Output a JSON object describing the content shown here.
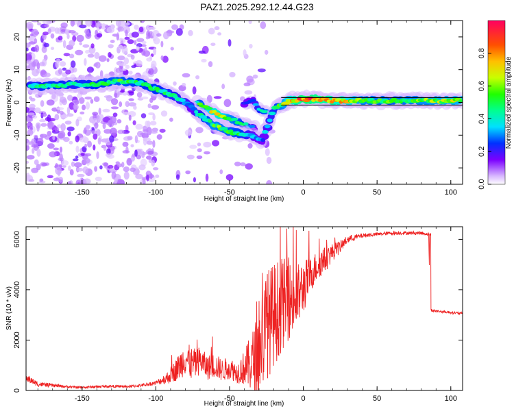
{
  "title": "PAZ1.2025.292.12.44.G23",
  "colors": {
    "snr_line": "#ee2222",
    "blob_low": "#c9a8ff",
    "blob_mid": "#7a1cf0",
    "axis": "#000000"
  },
  "chart_data": [
    {
      "type": "heatmap",
      "xlabel": "Height of straight line (km)",
      "ylabel": "Frequency (Hz)",
      "xlim": [
        -188,
        108
      ],
      "ylim": [
        -25,
        25
      ],
      "x_ticks": [
        -150,
        -100,
        -50,
        0,
        50,
        100
      ],
      "y_ticks": [
        -20,
        -10,
        0,
        10,
        20
      ],
      "colorbar": {
        "label": "Normalized spectral amplitude",
        "range": [
          0,
          1
        ],
        "ticks": [
          0.0,
          0.2,
          0.4,
          0.6,
          0.8
        ],
        "tick_labels": [
          "0.0",
          "0.2",
          "0.4",
          "0.6",
          "0.8"
        ]
      },
      "main_ridge": {
        "x": [
          -185,
          -170,
          -155,
          -140,
          -125,
          -110,
          -100,
          -90,
          -80,
          -75,
          -70,
          -60,
          -50,
          -42,
          -35,
          -28,
          -20,
          -10,
          0,
          10,
          20,
          40,
          60,
          80,
          100,
          108
        ],
        "y": [
          5,
          5,
          5.5,
          5.5,
          6.5,
          6,
          4,
          2.5,
          0,
          -2,
          -4,
          -7,
          -9,
          -9.5,
          -10,
          -12,
          -2,
          0.5,
          1,
          1,
          0.5,
          0.5,
          0.5,
          0.5,
          0.5,
          0.5
        ],
        "amplitude": [
          0.45,
          0.5,
          0.45,
          0.5,
          0.55,
          0.5,
          0.5,
          0.45,
          0.4,
          0.3,
          0.45,
          0.6,
          0.55,
          0.5,
          0.35,
          0.3,
          0.45,
          0.7,
          0.95,
          0.9,
          0.85,
          0.6,
          0.55,
          0.6,
          0.65,
          0.65
        ]
      },
      "secondary_ridge": {
        "x": [
          -72,
          -65,
          -58,
          -50,
          -44,
          -38,
          -33
        ],
        "y": [
          0,
          -2,
          -3.5,
          -5,
          -6,
          -7,
          -8
        ],
        "amplitude": [
          0.5,
          0.65,
          0.8,
          0.6,
          0.55,
          0.4,
          0.3
        ]
      },
      "tertiary_ridge": {
        "x": [
          -40,
          -35,
          -30,
          -25
        ],
        "y": [
          -0.5,
          1,
          -2,
          -3
        ],
        "amplitude": [
          0.2,
          0.3,
          0.45,
          0.55
        ]
      }
    },
    {
      "type": "line",
      "xlabel": "Height of straight line (km)",
      "ylabel": "SNR (10 * v/v)",
      "xlim": [
        -188,
        108
      ],
      "ylim": [
        0,
        6500
      ],
      "x_ticks": [
        -150,
        -100,
        -50,
        0,
        50,
        100
      ],
      "y_ticks": [
        0,
        2000,
        4000,
        6000
      ],
      "series": [
        {
          "name": "SNR",
          "x": [
            -188,
            -180,
            -170,
            -160,
            -150,
            -140,
            -130,
            -120,
            -110,
            -100,
            -92,
            -85,
            -80,
            -75,
            -70,
            -65,
            -60,
            -55,
            -50,
            -45,
            -40,
            -35,
            -30,
            -25,
            -20,
            -15,
            -10,
            -5,
            0,
            5,
            10,
            15,
            20,
            25,
            30,
            40,
            50,
            60,
            70,
            80,
            85,
            86,
            90,
            100,
            108
          ],
          "values": [
            500,
            250,
            200,
            150,
            120,
            150,
            170,
            150,
            200,
            300,
            500,
            900,
            1300,
            1000,
            1200,
            900,
            1000,
            800,
            900,
            700,
            900,
            1100,
            1500,
            2600,
            3000,
            3400,
            3600,
            3600,
            4100,
            4600,
            5000,
            5200,
            5500,
            5700,
            6000,
            6150,
            6200,
            6250,
            6250,
            6250,
            6200,
            3200,
            3150,
            3100,
            3050
          ],
          "noise": [
            150,
            100,
            70,
            50,
            50,
            50,
            50,
            50,
            60,
            80,
            250,
            500,
            700,
            650,
            550,
            500,
            500,
            450,
            450,
            400,
            700,
            1200,
            1800,
            2200,
            2100,
            1900,
            1600,
            1400,
            1100,
            700,
            600,
            500,
            350,
            250,
            150,
            90,
            70,
            70,
            70,
            70,
            60,
            60,
            50,
            50,
            50
          ]
        }
      ]
    }
  ]
}
